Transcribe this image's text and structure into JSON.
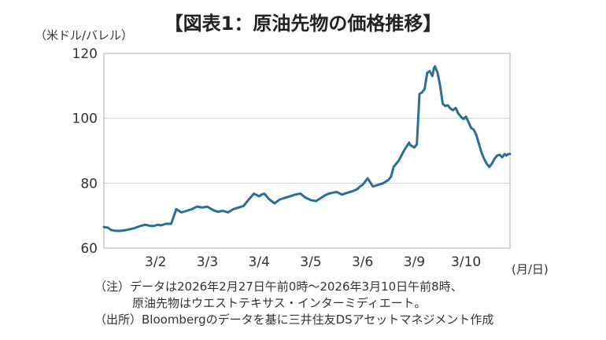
{
  "title": "【図表1：原油先物の価格推移】",
  "y_unit": "（米ドル/バレル）",
  "x_unit": "(月/日)",
  "notes": {
    "line1": "（注）データは2026年2月27日午前0時～2026年3月10日午前8時、",
    "line2": "原油先物はウエストテキサス・インターミディエート。",
    "line3": "（出所）Bloombergのデータを基に三井住友DSアセットマネジメント作成"
  },
  "colors": {
    "line": "#2a6f97",
    "grid": "#d0d0d0",
    "frame": "#b0b0b0"
  },
  "chart_data": {
    "type": "line",
    "xlabel": "",
    "ylabel": "（米ドル/バレル）",
    "ylim": [
      60,
      120
    ],
    "yticks": [
      60,
      80,
      100,
      120
    ],
    "grid": true,
    "xlim": [
      0,
      7.85
    ],
    "xtick_labels": [
      {
        "label": "3/2",
        "x": 1
      },
      {
        "label": "3/3",
        "x": 2
      },
      {
        "label": "3/4",
        "x": 3
      },
      {
        "label": "3/5",
        "x": 4
      },
      {
        "label": "3/6",
        "x": 5
      },
      {
        "label": "3/9",
        "x": 6
      },
      {
        "label": "3/10",
        "x": 7
      }
    ],
    "series": [
      {
        "x": [
          0,
          0.08,
          0.14,
          0.2,
          0.3,
          0.4,
          0.5,
          0.6,
          0.7,
          0.8,
          0.88,
          0.95,
          1.0,
          1.05,
          1.1,
          1.2,
          1.3,
          1.4,
          1.5,
          1.6,
          1.7,
          1.8,
          1.9,
          2.0,
          2.1,
          2.2,
          2.3,
          2.4,
          2.5,
          2.6,
          2.7,
          2.8,
          2.9,
          3.0,
          3.05,
          3.1,
          3.2,
          3.3,
          3.4,
          3.5,
          3.6,
          3.7,
          3.8,
          3.9,
          4.0,
          4.1,
          4.2,
          4.3,
          4.4,
          4.5,
          4.6,
          4.7,
          4.8,
          4.9,
          4.95,
          5.0,
          5.05,
          5.1,
          5.2,
          5.3,
          5.4,
          5.5,
          5.55,
          5.6,
          5.7,
          5.8,
          5.9,
          5.92,
          6.0,
          6.05,
          6.1,
          6.15,
          6.2,
          6.25,
          6.3,
          6.35,
          6.38,
          6.4,
          6.45,
          6.5,
          6.55,
          6.6,
          6.65,
          6.7,
          6.75,
          6.8,
          6.85,
          6.9,
          6.95,
          7.0,
          7.05,
          7.1,
          7.15,
          7.2,
          7.3,
          7.35,
          7.4,
          7.45,
          7.5,
          7.55,
          7.6,
          7.65,
          7.7,
          7.75,
          7.78,
          7.82,
          7.85
        ],
        "y": [
          66.5,
          66.3,
          65.6,
          65.4,
          65.3,
          65.5,
          65.8,
          66.2,
          66.8,
          67.2,
          66.9,
          66.8,
          67.0,
          67.2,
          67.0,
          67.5,
          67.5,
          72.0,
          71.0,
          71.5,
          72.0,
          72.8,
          72.5,
          72.8,
          71.8,
          71.2,
          71.5,
          71.0,
          72.0,
          72.5,
          73.0,
          75.0,
          76.8,
          76.0,
          76.5,
          76.8,
          75.0,
          73.8,
          75.0,
          75.5,
          76.0,
          76.5,
          76.8,
          75.5,
          74.8,
          74.5,
          75.5,
          76.5,
          77.0,
          77.3,
          76.5,
          77.0,
          77.5,
          78.2,
          79.0,
          79.5,
          80.5,
          81.5,
          79.0,
          79.5,
          80.0,
          81.0,
          82.0,
          85.0,
          87.0,
          90.0,
          92.5,
          91.8,
          91.0,
          92.0,
          107.5,
          108.0,
          109.0,
          114.0,
          114.5,
          113.0,
          115.5,
          116.0,
          114.0,
          110.0,
          104.5,
          103.8,
          104.0,
          103.0,
          102.5,
          103.2,
          101.5,
          100.5,
          99.8,
          100.5,
          98.8,
          97.0,
          96.5,
          94.8,
          89.5,
          87.5,
          86.0,
          85.0,
          86.0,
          87.5,
          88.5,
          88.8,
          88.0,
          89.0,
          88.5,
          89.0,
          89.0
        ]
      }
    ]
  }
}
